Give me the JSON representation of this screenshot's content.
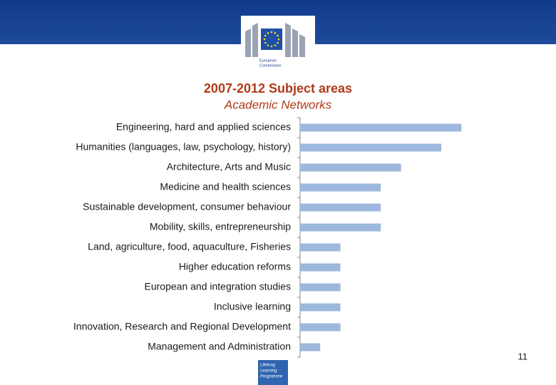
{
  "header": {
    "logo_text": [
      "European",
      "Commission"
    ]
  },
  "chart_data": {
    "type": "bar",
    "orientation": "horizontal",
    "title": "2007-2012 Subject areas",
    "subtitle": "Academic Networks",
    "categories": [
      "Engineering, hard and applied sciences",
      "Humanities (languages, law, psychology, history)",
      "Architecture, Arts and Music",
      "Medicine and health sciences",
      "Sustainable development, consumer behaviour",
      "Mobility, skills, entrepreneurship",
      "Land, agriculture, food, aquaculture, Fisheries",
      "Higher education reforms",
      "European and integration studies",
      "Inclusive learning",
      "Innovation, Research and Regional Development",
      "Management and Administration"
    ],
    "values": [
      8,
      7,
      5,
      4,
      4,
      4,
      2,
      2,
      2,
      2,
      2,
      1
    ],
    "color": "#9db8dc"
  },
  "page_number": "11",
  "footer_logo": [
    "Lifelong",
    "Learning",
    "Programme"
  ]
}
